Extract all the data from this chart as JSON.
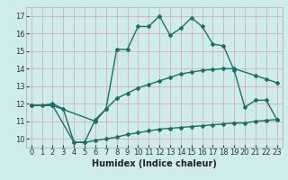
{
  "xlabel": "Humidex (Indice chaleur)",
  "ylabel": "",
  "bg_color": "#ceecea",
  "grid_color": "#d4a0b0",
  "line_color": "#1a7068",
  "xlim": [
    -0.5,
    23.5
  ],
  "ylim": [
    9.5,
    17.5
  ],
  "yticks": [
    10,
    11,
    12,
    13,
    14,
    15,
    16,
    17
  ],
  "xticks": [
    0,
    1,
    2,
    3,
    4,
    5,
    6,
    7,
    8,
    9,
    10,
    11,
    12,
    13,
    14,
    15,
    16,
    17,
    18,
    19,
    20,
    21,
    22,
    23
  ],
  "line1_x": [
    0,
    1,
    2,
    3,
    4,
    5,
    6,
    7,
    8,
    9,
    10,
    11,
    12,
    13,
    14,
    15,
    16,
    17,
    18,
    19,
    20,
    21,
    22,
    23
  ],
  "line1_y": [
    11.9,
    11.9,
    12.0,
    11.7,
    9.8,
    9.8,
    11.1,
    11.7,
    15.1,
    15.1,
    16.4,
    16.4,
    17.0,
    15.9,
    16.3,
    16.9,
    16.4,
    15.4,
    15.3,
    13.9,
    11.8,
    12.2,
    12.2,
    11.1
  ],
  "line2_x": [
    0,
    2,
    6,
    7,
    8,
    9,
    10,
    11,
    12,
    13,
    14,
    15,
    16,
    17,
    18,
    19,
    21,
    22,
    23
  ],
  "line2_y": [
    11.9,
    11.9,
    11.0,
    11.7,
    12.3,
    12.6,
    12.9,
    13.1,
    13.3,
    13.5,
    13.7,
    13.8,
    13.9,
    13.95,
    14.0,
    14.0,
    13.6,
    13.4,
    13.2
  ],
  "line3_x": [
    0,
    2,
    4,
    5,
    6,
    7,
    8,
    9,
    10,
    11,
    12,
    13,
    14,
    15,
    16,
    17,
    18,
    19,
    20,
    21,
    22,
    23
  ],
  "line3_y": [
    11.9,
    11.9,
    9.8,
    9.8,
    9.9,
    10.0,
    10.1,
    10.25,
    10.35,
    10.45,
    10.55,
    10.6,
    10.65,
    10.7,
    10.75,
    10.8,
    10.85,
    10.9,
    10.9,
    11.0,
    11.05,
    11.1
  ],
  "marker": "D",
  "marker_size": 2.0,
  "linewidth": 1.0,
  "tick_fontsize": 6.0,
  "label_fontsize": 7.0
}
